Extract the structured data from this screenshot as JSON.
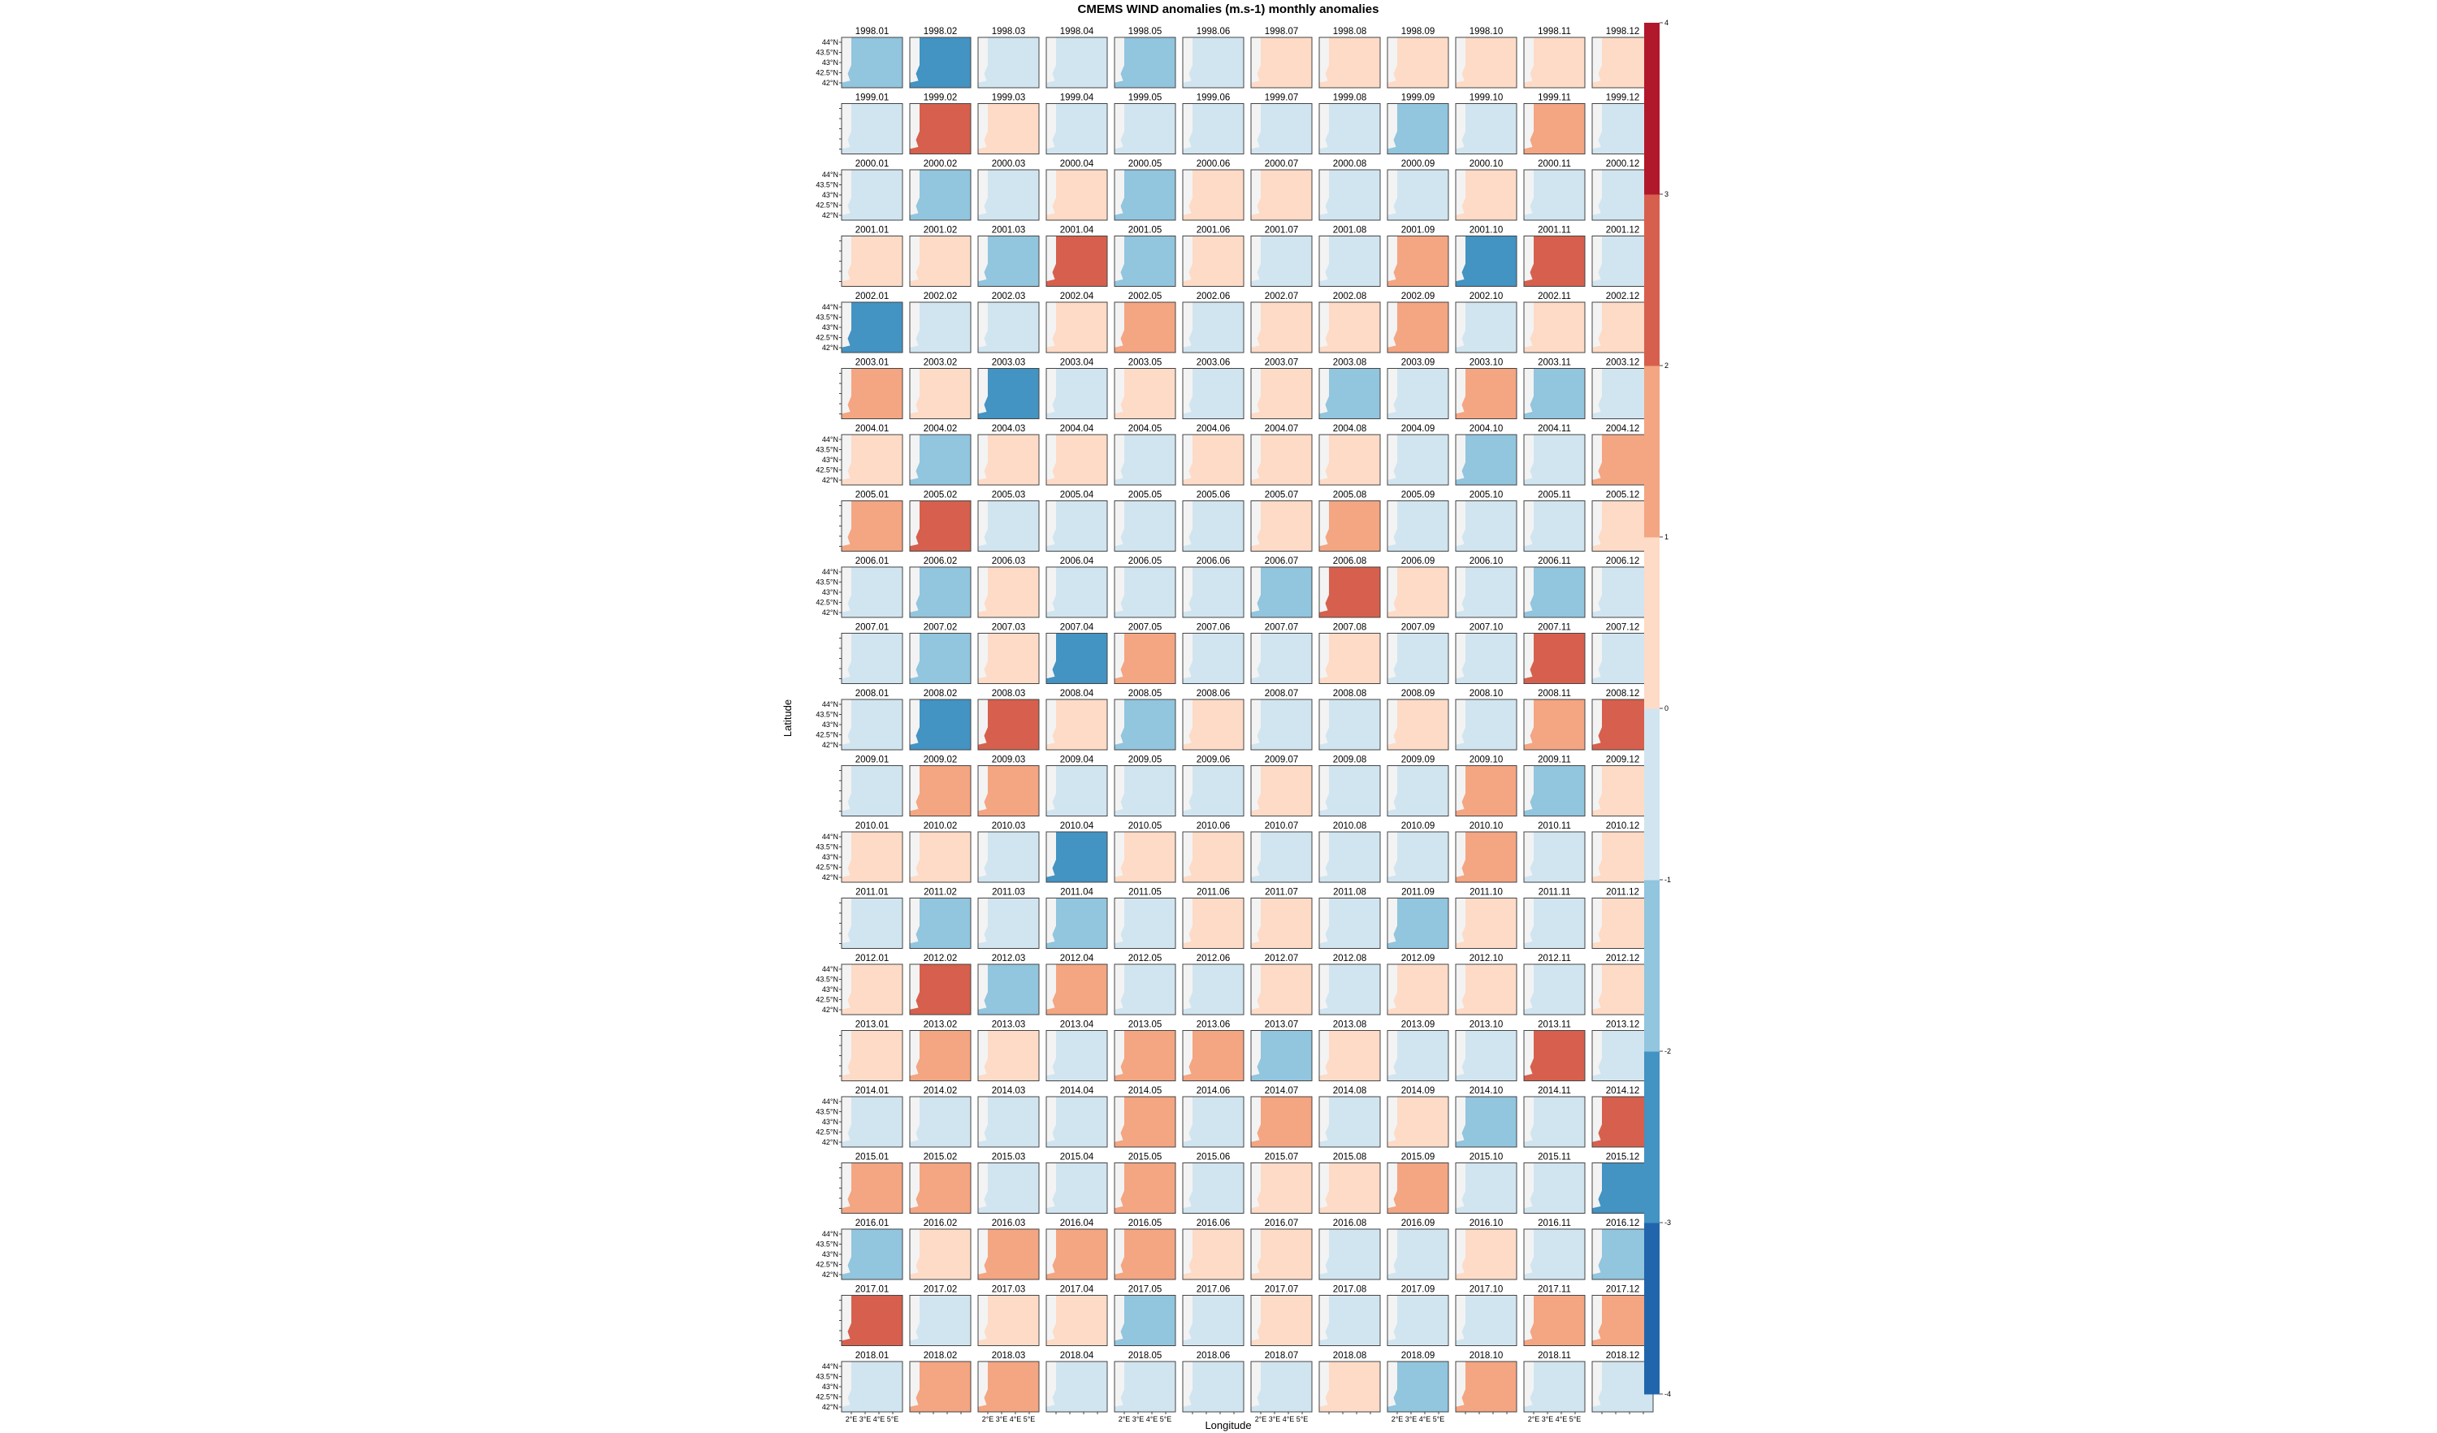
{
  "chart_data": {
    "type": "heatmap",
    "title": "CMEMS WIND anomalies (m.s-1) monthly anomalies",
    "xlabel": "Longitude",
    "ylabel": "Latitude",
    "lat_ticks": [
      "44°N",
      "43.5°N",
      "43°N",
      "42.5°N",
      "42°N"
    ],
    "lon_ticks": [
      "2°E",
      "3°E",
      "4°E",
      "5°E"
    ],
    "colorbar": {
      "range": [
        -4,
        4
      ],
      "ticks": [
        "4",
        "3",
        "2",
        "1",
        "0",
        "-1",
        "-2",
        "-3",
        "-4"
      ],
      "colors": [
        "#2166ac",
        "#4393c3",
        "#92c5de",
        "#d1e5f0",
        "#fddbc7",
        "#f4a582",
        "#d6604d",
        "#b2182b"
      ]
    },
    "years": [
      "1998",
      "1999",
      "2000",
      "2001",
      "2002",
      "2003",
      "2004",
      "2005",
      "2006",
      "2007",
      "2008",
      "2009",
      "2010",
      "2011",
      "2012",
      "2013",
      "2014",
      "2015",
      "2016",
      "2017",
      "2018"
    ],
    "months": [
      "01",
      "02",
      "03",
      "04",
      "05",
      "06",
      "07",
      "08",
      "09",
      "10",
      "11",
      "12"
    ],
    "panel_mean_anomaly": [
      [
        -1.5,
        -2.8,
        -0.5,
        -0.5,
        -1.2,
        -0.4,
        0.4,
        0.4,
        0.5,
        0.3,
        0.4,
        0.4
      ],
      [
        -0.6,
        2.4,
        0.4,
        -0.3,
        -0.3,
        -0.4,
        -0.4,
        -1.0,
        -1.3,
        -1.0,
        1.6,
        -0.5
      ],
      [
        -0.4,
        -1.3,
        -0.4,
        0.4,
        -1.2,
        0.4,
        0.5,
        -0.4,
        -0.4,
        0.5,
        -0.5,
        -0.4
      ],
      [
        0.5,
        0.5,
        -1.4,
        2.4,
        -1.2,
        0.3,
        -0.4,
        -0.4,
        1.7,
        -2.1,
        2.1,
        -0.4
      ],
      [
        -2.3,
        -0.8,
        -0.3,
        0.5,
        1.1,
        -0.4,
        0.5,
        0.4,
        1.5,
        -0.5,
        0.7,
        0.5
      ],
      [
        1.4,
        0.5,
        -2.2,
        -0.3,
        0.5,
        -0.4,
        0.4,
        -1.9,
        -0.5,
        1.6,
        -2.0,
        -0.4
      ],
      [
        0.5,
        -1.2,
        0.4,
        0.4,
        -0.4,
        0.4,
        0.5,
        0.5,
        -0.4,
        -1.5,
        -1.0,
        1.2
      ],
      [
        1.4,
        2.3,
        -0.8,
        -0.4,
        -0.4,
        -0.4,
        0.4,
        1.5,
        -0.8,
        -0.8,
        -0.4,
        0.4
      ],
      [
        -0.4,
        -1.1,
        0.4,
        -0.4,
        -0.4,
        -0.4,
        -1.3,
        2.6,
        0.5,
        -0.4,
        -1.2,
        -1.0
      ],
      [
        -0.5,
        -2.0,
        0.4,
        -2.5,
        1.5,
        -0.4,
        -0.4,
        0.4,
        -0.3,
        -0.4,
        2.3,
        -0.5
      ],
      [
        -0.9,
        -2.9,
        2.4,
        0.5,
        -1.3,
        0.4,
        -0.4,
        -0.4,
        0.4,
        -0.4,
        1.0,
        2.1
      ],
      [
        -0.4,
        1.5,
        1.0,
        -0.4,
        -0.4,
        -0.4,
        0.4,
        -0.4,
        -0.6,
        1.5,
        -1.2,
        0.7
      ],
      [
        0.4,
        0.5,
        -0.4,
        -2.2,
        0.8,
        0.4,
        -0.7,
        -0.4,
        -0.5,
        1.3,
        -0.4,
        0.6
      ],
      [
        -0.4,
        -1.4,
        -0.4,
        -1.3,
        -0.6,
        0.4,
        0.5,
        -0.6,
        -1.2,
        0.4,
        -0.9,
        0.5
      ],
      [
        0.6,
        2.7,
        -1.2,
        1.5,
        -0.4,
        -0.4,
        0.5,
        -0.4,
        0.4,
        0.4,
        -0.9,
        0.5
      ],
      [
        0.6,
        1.5,
        0.6,
        -0.4,
        1.5,
        1.6,
        -1.4,
        0.4,
        -0.4,
        -0.4,
        2.2,
        -0.4
      ],
      [
        -0.4,
        -0.4,
        -0.4,
        -0.4,
        1.5,
        -0.4,
        1.6,
        -0.4,
        0.5,
        -1.4,
        -0.7,
        2.5
      ],
      [
        1.4,
        1.6,
        -0.4,
        -0.8,
        1.5,
        -0.4,
        0.6,
        0.4,
        1.5,
        -0.4,
        -0.4,
        -2.8
      ],
      [
        -1.5,
        0.4,
        1.4,
        1.6,
        1.6,
        0.4,
        0.4,
        -0.4,
        -0.4,
        0.4,
        -0.4,
        -2.0
      ],
      [
        2.3,
        -0.4,
        0.5,
        0.5,
        -1.2,
        -0.4,
        0.4,
        -0.4,
        -0.4,
        -0.4,
        1.4,
        1.4
      ],
      [
        -0.4,
        1.3,
        1.3,
        -0.4,
        -0.7,
        -0.4,
        -0.9,
        0.5,
        -1.2,
        1.6,
        -0.8,
        -0.6
      ]
    ]
  }
}
